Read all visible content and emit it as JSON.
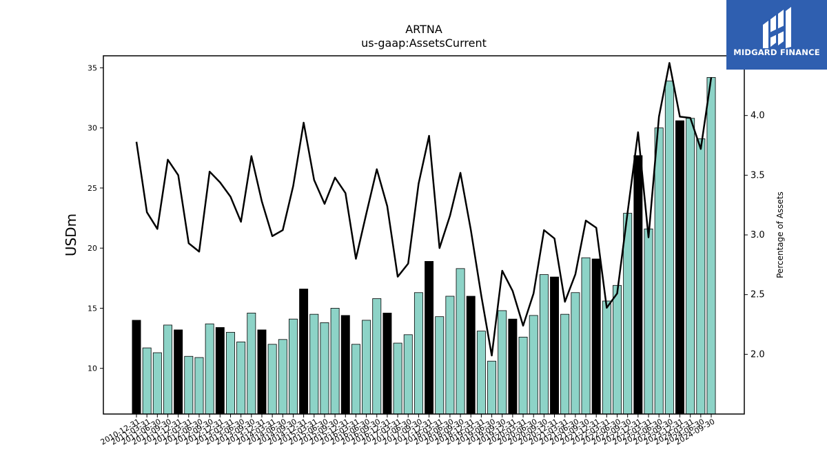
{
  "chart_data": {
    "type": "bar",
    "title": "ARTNA",
    "subtitle": "us-gaap:AssetsCurrent",
    "ylabel": "USDm",
    "y2label": "Percentage of Assets",
    "ylim": [
      6.2,
      36.0
    ],
    "y2lim": [
      1.5,
      4.5
    ],
    "yticks": [
      10,
      15,
      20,
      25,
      30,
      35
    ],
    "y2ticks": [
      2.0,
      2.5,
      3.0,
      3.5,
      4.0
    ],
    "grid": false,
    "categories": [
      "2010-12-31",
      "2011-03-31",
      "2011-06-30",
      "2011-09-30",
      "2011-12-31",
      "2012-03-31",
      "2012-06-30",
      "2012-09-30",
      "2012-12-31",
      "2013-03-31",
      "2013-06-30",
      "2013-09-30",
      "2013-12-31",
      "2014-03-31",
      "2014-06-30",
      "2014-09-30",
      "2014-12-31",
      "2015-03-31",
      "2015-06-30",
      "2015-09-30",
      "2015-12-31",
      "2016-03-31",
      "2016-06-30",
      "2016-09-30",
      "2016-12-31",
      "2017-03-31",
      "2017-06-30",
      "2017-09-30",
      "2017-12-31",
      "2018-03-31",
      "2018-06-30",
      "2018-09-30",
      "2018-12-31",
      "2019-03-31",
      "2019-06-30",
      "2019-09-30",
      "2019-12-31",
      "2020-03-31",
      "2020-06-30",
      "2020-09-30",
      "2020-12-31",
      "2021-03-31",
      "2021-06-30",
      "2021-09-30",
      "2021-12-31",
      "2022-03-31",
      "2022-06-30",
      "2022-09-30",
      "2022-12-31",
      "2023-03-31",
      "2023-06-30",
      "2023-09-30",
      "2023-12-31",
      "2024-03-31",
      "2024-06-30",
      "2024-09-30"
    ],
    "series": [
      {
        "type": "bar",
        "axis": "left",
        "values": [
          14.0,
          11.7,
          11.3,
          13.6,
          13.2,
          11.0,
          10.9,
          13.7,
          13.4,
          13.0,
          12.2,
          14.6,
          13.2,
          12.0,
          12.4,
          14.1,
          16.6,
          14.5,
          13.8,
          15.0,
          14.4,
          12.0,
          14.0,
          15.8,
          14.6,
          12.1,
          12.8,
          16.3,
          18.9,
          14.3,
          16.0,
          18.3,
          16.0,
          13.1,
          10.6,
          14.8,
          14.1,
          12.6,
          14.4,
          17.8,
          17.6,
          14.5,
          16.3,
          19.2,
          19.1,
          15.6,
          16.9,
          22.9,
          27.7,
          21.6,
          30.0,
          33.9,
          30.6,
          30.8,
          29.1,
          34.2
        ],
        "fourth_quarter_color": "#000000",
        "other_quarter_color": "#8dd3c7"
      },
      {
        "type": "line",
        "axis": "right",
        "color": "#000000",
        "values": [
          3.78,
          3.19,
          3.05,
          3.63,
          3.5,
          2.93,
          2.86,
          3.53,
          3.44,
          3.32,
          3.11,
          3.66,
          3.28,
          2.99,
          3.04,
          3.41,
          3.94,
          3.46,
          3.26,
          3.48,
          3.35,
          2.8,
          3.18,
          3.55,
          3.24,
          2.65,
          2.76,
          3.43,
          3.83,
          2.89,
          3.16,
          3.52,
          3.04,
          2.49,
          1.99,
          2.7,
          2.53,
          2.24,
          2.51,
          3.04,
          2.97,
          2.44,
          2.67,
          3.12,
          3.06,
          2.39,
          2.51,
          3.19,
          3.86,
          2.98,
          3.99,
          4.44,
          3.99,
          3.98,
          3.72,
          4.32
        ]
      }
    ]
  },
  "branding": {
    "logo_text": "MIDGARD FINANCE"
  }
}
